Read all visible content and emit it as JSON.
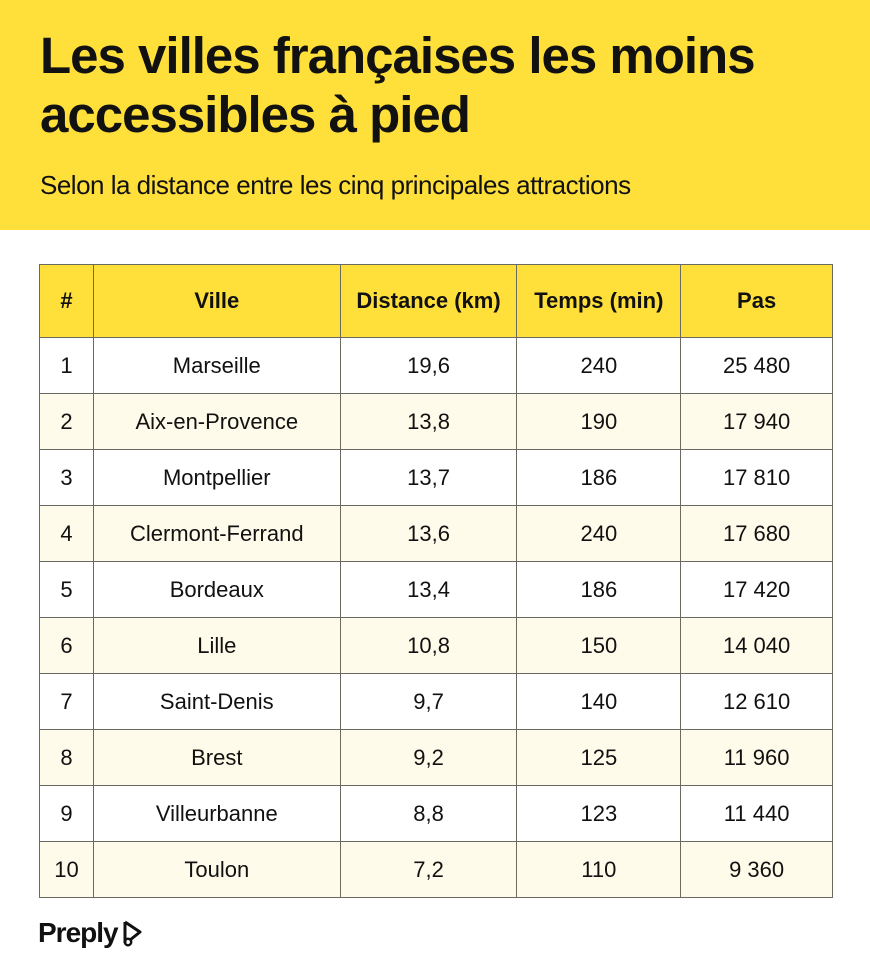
{
  "header": {
    "title": "Les villes françaises les moins accessibles à pied",
    "subtitle": "Selon la distance entre les cinq principales attractions"
  },
  "colors": {
    "accent": "#FFE03A",
    "row_alt": "#FFFBEA"
  },
  "chart_data": {
    "type": "table",
    "title": "Les villes françaises les moins accessibles à pied",
    "columns": [
      "#",
      "Ville",
      "Distance (km)",
      "Temps (min)",
      "Pas"
    ],
    "rows": [
      [
        "1",
        "Marseille",
        "19,6",
        "240",
        "25 480"
      ],
      [
        "2",
        "Aix-en-Provence",
        "13,8",
        "190",
        "17 940"
      ],
      [
        "3",
        "Montpellier",
        "13,7",
        "186",
        "17 810"
      ],
      [
        "4",
        "Clermont-Ferrand",
        "13,6",
        "240",
        "17 680"
      ],
      [
        "5",
        "Bordeaux",
        "13,4",
        "186",
        "17 420"
      ],
      [
        "6",
        "Lille",
        "10,8",
        "150",
        "14 040"
      ],
      [
        "7",
        "Saint-Denis",
        "9,7",
        "140",
        "12 610"
      ],
      [
        "8",
        "Brest",
        "9,2",
        "125",
        "11 960"
      ],
      [
        "9",
        "Villeurbanne",
        "8,8",
        "123",
        "11 440"
      ],
      [
        "10",
        "Toulon",
        "7,2",
        "110",
        "9 360"
      ]
    ]
  },
  "footer": {
    "logo": "Preply",
    "logo_icon": "preply-hat-icon"
  }
}
